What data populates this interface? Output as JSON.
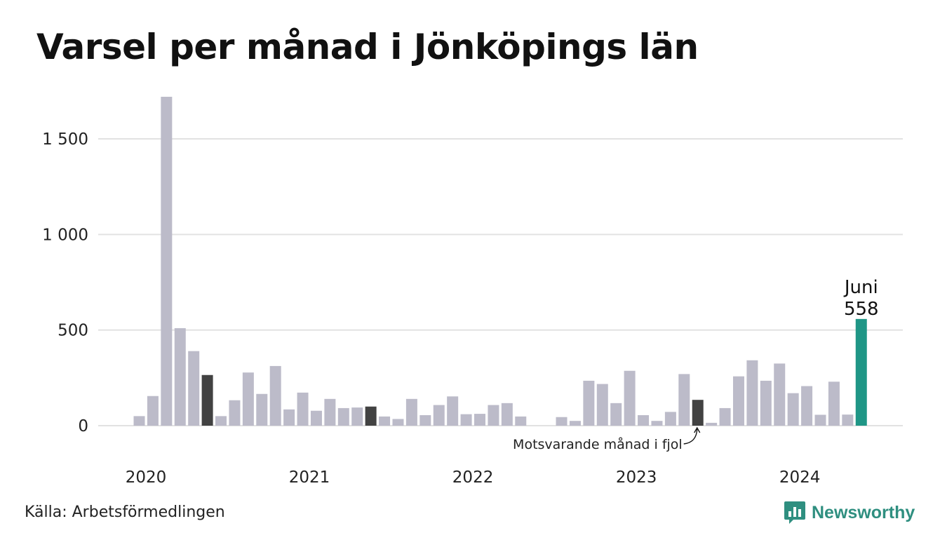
{
  "title": "Varsel per månad i Jönköpings län",
  "source": "Källa: Arbetsförmedlingen",
  "brand": {
    "name": "Newsworthy",
    "icon": "newsworthy-logo-icon"
  },
  "colors": {
    "bar": "#bcbbc9",
    "comparison": "#424242",
    "highlight": "#1f9686",
    "grid": "#e2e2e2",
    "brand": "#2f8f80"
  },
  "chart_data": {
    "type": "bar",
    "title": "Varsel per månad i Jönköpings län",
    "xlabel": "",
    "ylabel": "",
    "ylim": [
      0,
      1720
    ],
    "yticks": [
      0,
      500,
      1000,
      1500
    ],
    "ytick_labels": [
      "0",
      "500",
      "1 000",
      "1 500"
    ],
    "xtick_labels": [
      "2020",
      "2021",
      "2022",
      "2023",
      "2024"
    ],
    "grid": true,
    "categories": [
      "2020-01",
      "2020-02",
      "2020-03",
      "2020-04",
      "2020-05",
      "2020-06",
      "2020-07",
      "2020-08",
      "2020-09",
      "2020-10",
      "2020-11",
      "2020-12",
      "2021-01",
      "2021-02",
      "2021-03",
      "2021-04",
      "2021-05",
      "2021-06",
      "2021-07",
      "2021-08",
      "2021-09",
      "2021-10",
      "2021-11",
      "2021-12",
      "2022-01",
      "2022-02",
      "2022-03",
      "2022-04",
      "2022-05",
      "2022-06",
      "2022-07",
      "2022-08",
      "2022-09",
      "2022-10",
      "2022-11",
      "2022-12",
      "2023-01",
      "2023-02",
      "2023-03",
      "2023-04",
      "2023-05",
      "2023-06",
      "2023-07",
      "2023-08",
      "2023-09",
      "2023-10",
      "2023-11",
      "2023-12",
      "2024-01",
      "2024-02",
      "2024-03",
      "2024-04",
      "2024-05",
      "2024-06"
    ],
    "values": [
      50,
      155,
      1720,
      510,
      390,
      265,
      50,
      133,
      278,
      166,
      312,
      85,
      173,
      78,
      140,
      92,
      95,
      100,
      48,
      35,
      140,
      55,
      108,
      153,
      60,
      62,
      108,
      118,
      48,
      0,
      0,
      45,
      25,
      235,
      218,
      118,
      287,
      55,
      25,
      72,
      270,
      135,
      15,
      92,
      258,
      342,
      235,
      325,
      170,
      207,
      57,
      230,
      58,
      558
    ],
    "highlight": {
      "index": 53,
      "month_label": "Juni",
      "value_label": "558"
    },
    "comparison_indices": [
      5,
      17,
      41
    ],
    "comparison_annotation": {
      "index": 41,
      "text": "Motsvarande månad i fjol"
    }
  }
}
